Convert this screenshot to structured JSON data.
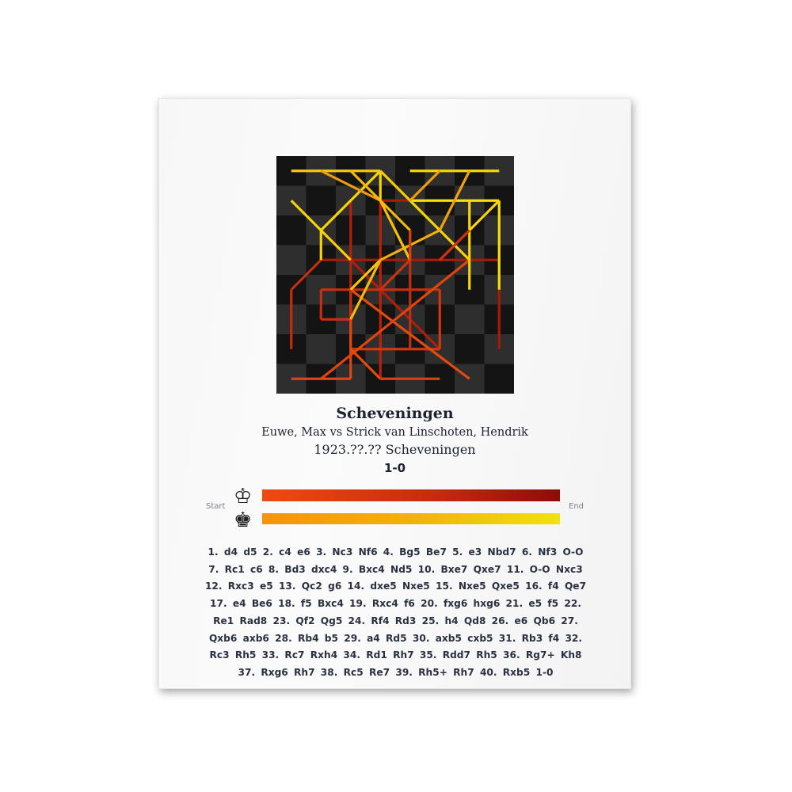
{
  "poster": {
    "title": "Scheveningen",
    "players": "Euwe, Max vs Strick van Linschoten, Hendrik",
    "date_event": "1923.??.?? Scheveningen",
    "result": "1-0",
    "legend": {
      "start_label": "Start",
      "end_label": "End",
      "white_icon": "white-king-icon",
      "black_icon": "black-king-icon",
      "white_gradient": [
        "#f04a12",
        "#8c0c06"
      ],
      "black_gradient": [
        "#f5930f",
        "#f2e20a"
      ]
    },
    "moves": "1. d4 d5 2. c4 e6 3. Nc3 Nf6 4. Bg5 Be7 5. e3 Nbd7 6. Nf3 O-O 7. Rc1 c6 8. Bd3 dxc4 9. Bxc4 Nd5 10. Bxe7 Qxe7 11. O-O Nxc3 12. Rxc3 e5 13. Qc2 g6 14. dxe5 Nxe5 15. Nxe5 Qxe5 16. f4 Qe7 17. e4 Be6 18. f5 Bxc4 19. Rxc4 f6 20. fxg6 hxg6 21. e5 f5 22. Re1 Rad8 23. Qf2 Qg5 24. Rf4 Rd3 25. h4 Qd8 26. e6 Qb6 27. Qxb6 axb6 28. Rb4 b5 29. a4 Rd5 30. axb5 cxb5 31. Rb3 f4 32. Rc3 Rh5 33. Rc7 Rxh4 34. Rd1 Rh7 35. Rdd7 Rh5 36. Rg7+ Kh8 37. Rxg6 Rh7 38. Rc5 Re7 39. Rh5+ Rh7 40. Rxb5 1-0",
    "board_colors": {
      "dark": "#141414",
      "light": "#2e2e2e"
    }
  }
}
